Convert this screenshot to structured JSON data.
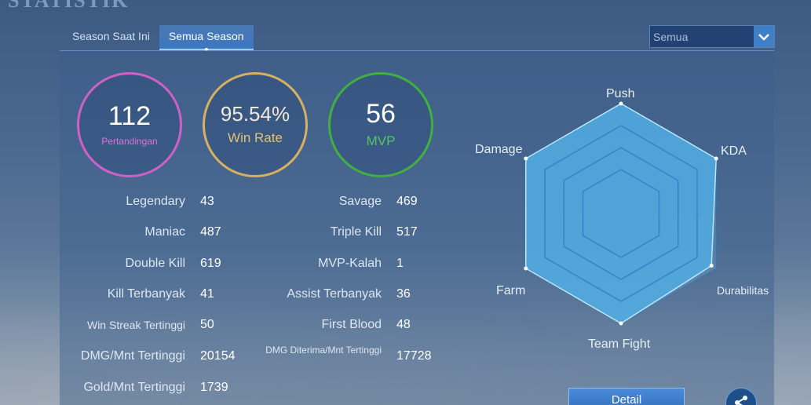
{
  "header": {
    "title": "STATISTIK"
  },
  "tabs": [
    {
      "label": "Season Saat Ini"
    },
    {
      "label": "Semua Season"
    }
  ],
  "filter": {
    "selected": "Semua"
  },
  "summary": {
    "matches": {
      "value": "112",
      "label": "Pertandingan"
    },
    "win_rate": {
      "value": "95.54%",
      "label": "Win Rate"
    },
    "mvp": {
      "value": "56",
      "label": "MVP"
    }
  },
  "stats_left": [
    {
      "label": "Legendary",
      "value": "43"
    },
    {
      "label": "Maniac",
      "value": "487"
    },
    {
      "label": "Double Kill",
      "value": "619"
    },
    {
      "label": "Kill Terbanyak",
      "value": "41"
    },
    {
      "label": "Win Streak Tertinggi",
      "value": "50"
    },
    {
      "label": "DMG/Mnt Tertinggi",
      "value": "20154"
    },
    {
      "label": "Gold/Mnt Tertinggi",
      "value": "1739"
    }
  ],
  "stats_right": [
    {
      "label": "Savage",
      "value": "469"
    },
    {
      "label": "Triple Kill",
      "value": "517"
    },
    {
      "label": "MVP-Kalah",
      "value": "1"
    },
    {
      "label": "Assist Terbanyak",
      "value": "36"
    },
    {
      "label": "First Blood",
      "value": "48"
    },
    {
      "label": "DMG Diterima/Mnt Tertinggi",
      "value": "17728"
    }
  ],
  "radar": {
    "axes": [
      "Push",
      "KDA",
      "Durabilitas",
      "Team Fight",
      "Farm",
      "Damage"
    ],
    "values": [
      1.0,
      1.0,
      0.95,
      1.0,
      1.0,
      1.0
    ],
    "fill_color": "#4fb0e8"
  },
  "buttons": {
    "detail": "Detail"
  },
  "icons": {
    "share": "share-icon",
    "dropdown": "chevron-down-icon"
  }
}
